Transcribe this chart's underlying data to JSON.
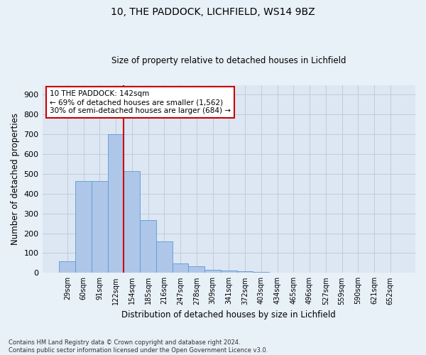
{
  "title1": "10, THE PADDOCK, LICHFIELD, WS14 9BZ",
  "title2": "Size of property relative to detached houses in Lichfield",
  "xlabel": "Distribution of detached houses by size in Lichfield",
  "ylabel": "Number of detached properties",
  "footnote": "Contains HM Land Registry data © Crown copyright and database right 2024.\nContains public sector information licensed under the Open Government Licence v3.0.",
  "bar_labels": [
    "29sqm",
    "60sqm",
    "91sqm",
    "122sqm",
    "154sqm",
    "185sqm",
    "216sqm",
    "247sqm",
    "278sqm",
    "309sqm",
    "341sqm",
    "372sqm",
    "403sqm",
    "434sqm",
    "465sqm",
    "496sqm",
    "527sqm",
    "559sqm",
    "590sqm",
    "621sqm",
    "652sqm"
  ],
  "bar_values": [
    60,
    465,
    465,
    700,
    515,
    265,
    160,
    47,
    32,
    15,
    13,
    8,
    5,
    2,
    2,
    1,
    1,
    0,
    0,
    0,
    0
  ],
  "bar_color": "#aec6e8",
  "bar_edge_color": "#5b9bd5",
  "vline_x": 3.5,
  "vline_color": "#cc0000",
  "ylim": [
    0,
    950
  ],
  "yticks": [
    0,
    100,
    200,
    300,
    400,
    500,
    600,
    700,
    800,
    900
  ],
  "annotation_text": "10 THE PADDOCK: 142sqm\n← 69% of detached houses are smaller (1,562)\n30% of semi-detached houses are larger (684) →",
  "annotation_box_color": "#ffffff",
  "annotation_box_edge": "#cc0000",
  "background_color": "#e8f0f8",
  "plot_bg_color": "#dce7f3",
  "grid_color": "#c0ccd8"
}
